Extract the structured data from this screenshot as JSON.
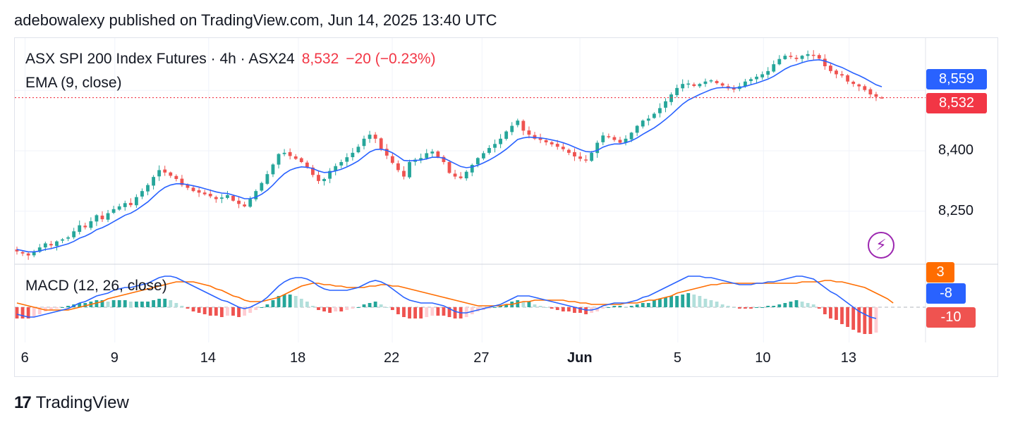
{
  "publisher": "adebowalexy published on TradingView.com, Jun 14, 2025 13:40 UTC",
  "legend": {
    "symbol": "ASX SPI 200 Index Futures · 4h · ASX24",
    "price": "8,532",
    "change": "−20 (−0.23%)",
    "ema_label": "EMA (9, close)",
    "macd_label": "MACD (12, 26, close)"
  },
  "price_tags": {
    "ema": "8,559",
    "last": "8,532",
    "macd_signal": "3",
    "macd_line": "-8",
    "macd_hist": "-10"
  },
  "colors": {
    "up": "#26a69a",
    "down": "#ef5350",
    "ema": "#2962ff",
    "macd": "#2962ff",
    "signal": "#ff6d00",
    "last_price": "#f23645",
    "bolt": "#9c27b0"
  },
  "logo": {
    "text": "TradingView",
    "icon": "tradingview-logo-icon"
  },
  "bolt_icon": "lightning-bolt-icon",
  "chart_data": {
    "type": "candlestick",
    "timeframe": "4h",
    "x_tick_labels": [
      "6",
      "9",
      "14",
      "18",
      "22",
      "27",
      "Jun",
      "5",
      "10",
      "13"
    ],
    "x_tick_positions": [
      1,
      12,
      23.5,
      34.5,
      46,
      57,
      69,
      81,
      91.5,
      102
    ],
    "y_tick_labels": [
      "8,400",
      "8,250"
    ],
    "y_ticks": [
      8400,
      8250
    ],
    "ylim": [
      8120,
      8680
    ],
    "last_price": 8532,
    "ema_last": 8559,
    "macd_ylim": [
      -25,
      30
    ],
    "macd_last": -8,
    "signal_last": 3,
    "hist_last": -10,
    "closes": [
      8150,
      8145,
      8140,
      8148,
      8160,
      8170,
      8165,
      8175,
      8180,
      8185,
      8200,
      8215,
      8210,
      8225,
      8240,
      8230,
      8245,
      8255,
      8262,
      8270,
      8265,
      8285,
      8300,
      8315,
      8335,
      8352,
      8346,
      8338,
      8330,
      8315,
      8308,
      8300,
      8296,
      8292,
      8287,
      8280,
      8284,
      8290,
      8276,
      8268,
      8262,
      8280,
      8300,
      8320,
      8342,
      8366,
      8392,
      8395,
      8387,
      8380,
      8372,
      8358,
      8340,
      8325,
      8330,
      8350,
      8362,
      8372,
      8384,
      8395,
      8410,
      8430,
      8440,
      8430,
      8405,
      8388,
      8370,
      8352,
      8336,
      8372,
      8378,
      8382,
      8394,
      8398,
      8385,
      8372,
      8345,
      8336,
      8332,
      8348,
      8365,
      8382,
      8394,
      8407,
      8417,
      8430,
      8448,
      8462,
      8475,
      8450,
      8440,
      8430,
      8427,
      8421,
      8416,
      8410,
      8404,
      8395,
      8386,
      8380,
      8376,
      8395,
      8420,
      8438,
      8434,
      8427,
      8420,
      8430,
      8445,
      8462,
      8475,
      8480,
      8492,
      8506,
      8523,
      8540,
      8556,
      8566,
      8567,
      8561,
      8566,
      8572,
      8575,
      8568,
      8562,
      8555,
      8552,
      8560,
      8572,
      8578,
      8584,
      8590,
      8598,
      8615,
      8628,
      8636,
      8633,
      8628,
      8636,
      8640,
      8636,
      8629,
      8610,
      8598,
      8590,
      8587,
      8572,
      8566,
      8560,
      8551,
      8540,
      8534,
      8532
    ],
    "ema": [
      8155,
      8152,
      8149,
      8149,
      8151,
      8155,
      8157,
      8161,
      8165,
      8169,
      8175,
      8183,
      8188,
      8195,
      8204,
      8209,
      8216,
      8224,
      8232,
      8240,
      8245,
      8253,
      8263,
      8273,
      8286,
      8299,
      8309,
      8315,
      8318,
      8318,
      8316,
      8313,
      8310,
      8306,
      8302,
      8298,
      8295,
      8294,
      8290,
      8286,
      8281,
      8281,
      8285,
      8292,
      8302,
      8315,
      8330,
      8343,
      8352,
      8357,
      8360,
      8359,
      8356,
      8350,
      8346,
      8347,
      8350,
      8354,
      8360,
      8367,
      8375,
      8386,
      8397,
      8403,
      8404,
      8401,
      8395,
      8386,
      8376,
      8375,
      8376,
      8377,
      8380,
      8384,
      8384,
      8382,
      8375,
      8368,
      8361,
      8358,
      8360,
      8364,
      8370,
      8377,
      8385,
      8394,
      8404,
      8416,
      8428,
      8432,
      8434,
      8433,
      8432,
      8430,
      8427,
      8424,
      8420,
      8415,
      8409,
      8403,
      8398,
      8397,
      8401,
      8409,
      8414,
      8417,
      8417,
      8420,
      8425,
      8432,
      8441,
      8449,
      8457,
      8467,
      8478,
      8490,
      8503,
      8516,
      8526,
      8533,
      8540,
      8546,
      8552,
      8556,
      8557,
      8557,
      8556,
      8557,
      8560,
      8564,
      8568,
      8573,
      8578,
      8585,
      8594,
      8603,
      8610,
      8614,
      8619,
      8623,
      8625,
      8626,
      8623,
      8618,
      8612,
      8607,
      8600,
      8593,
      8587,
      8580,
      8572,
      8564,
      8559
    ],
    "macd": [
      -5,
      -6,
      -7,
      -7,
      -6,
      -5,
      -4,
      -3,
      -2,
      -1,
      1,
      3,
      4,
      6,
      8,
      9,
      10,
      12,
      13,
      14,
      14,
      15,
      16,
      17,
      19,
      21,
      22,
      22,
      21,
      19,
      17,
      15,
      13,
      11,
      9,
      7,
      5,
      4,
      2,
      0,
      -1,
      0,
      2,
      4,
      7,
      11,
      15,
      18,
      20,
      21,
      21,
      20,
      18,
      15,
      13,
      12,
      12,
      12,
      12,
      13,
      14,
      16,
      18,
      19,
      18,
      16,
      13,
      10,
      7,
      5,
      4,
      3,
      3,
      3,
      2,
      1,
      -1,
      -3,
      -4,
      -4,
      -3,
      -2,
      -1,
      0,
      1,
      2,
      4,
      6,
      8,
      8,
      8,
      7,
      6,
      5,
      4,
      3,
      2,
      1,
      0,
      -1,
      -2,
      -2,
      -1,
      1,
      2,
      3,
      3,
      3,
      4,
      5,
      7,
      8,
      10,
      12,
      14,
      16,
      18,
      20,
      22,
      22,
      22,
      21,
      21,
      20,
      19,
      18,
      17,
      16,
      16,
      16,
      17,
      17,
      18,
      18,
      19,
      20,
      21,
      22,
      22,
      21,
      20,
      17,
      14,
      11,
      9,
      6,
      3,
      0,
      -3,
      -5,
      -7,
      -8
    ],
    "signal": [
      3,
      2,
      1,
      0,
      -1,
      -2,
      -2,
      -2,
      -2,
      -2,
      -1,
      0,
      1,
      2,
      3,
      4,
      6,
      7,
      8,
      9,
      10,
      11,
      12,
      13,
      14,
      15,
      16,
      17,
      18,
      18,
      18,
      18,
      17,
      16,
      15,
      13,
      12,
      10,
      8,
      7,
      5,
      4,
      4,
      4,
      5,
      6,
      7,
      9,
      11,
      13,
      15,
      16,
      17,
      17,
      16,
      16,
      15,
      15,
      14,
      14,
      14,
      14,
      15,
      15,
      16,
      16,
      15,
      15,
      14,
      13,
      12,
      11,
      10,
      9,
      8,
      7,
      6,
      5,
      4,
      3,
      2,
      1,
      1,
      1,
      1,
      1,
      2,
      2,
      3,
      4,
      4,
      5,
      5,
      5,
      5,
      5,
      5,
      4,
      4,
      3,
      3,
      2,
      2,
      2,
      2,
      2,
      2,
      3,
      3,
      3,
      4,
      5,
      5,
      6,
      7,
      8,
      10,
      11,
      12,
      13,
      14,
      15,
      16,
      16,
      17,
      17,
      17,
      17,
      17,
      17,
      17,
      17,
      17,
      17,
      17,
      17,
      17,
      17,
      18,
      18,
      18,
      18,
      19,
      19,
      18,
      18,
      17,
      16,
      15,
      14,
      12,
      10,
      8,
      6,
      3
    ]
  }
}
